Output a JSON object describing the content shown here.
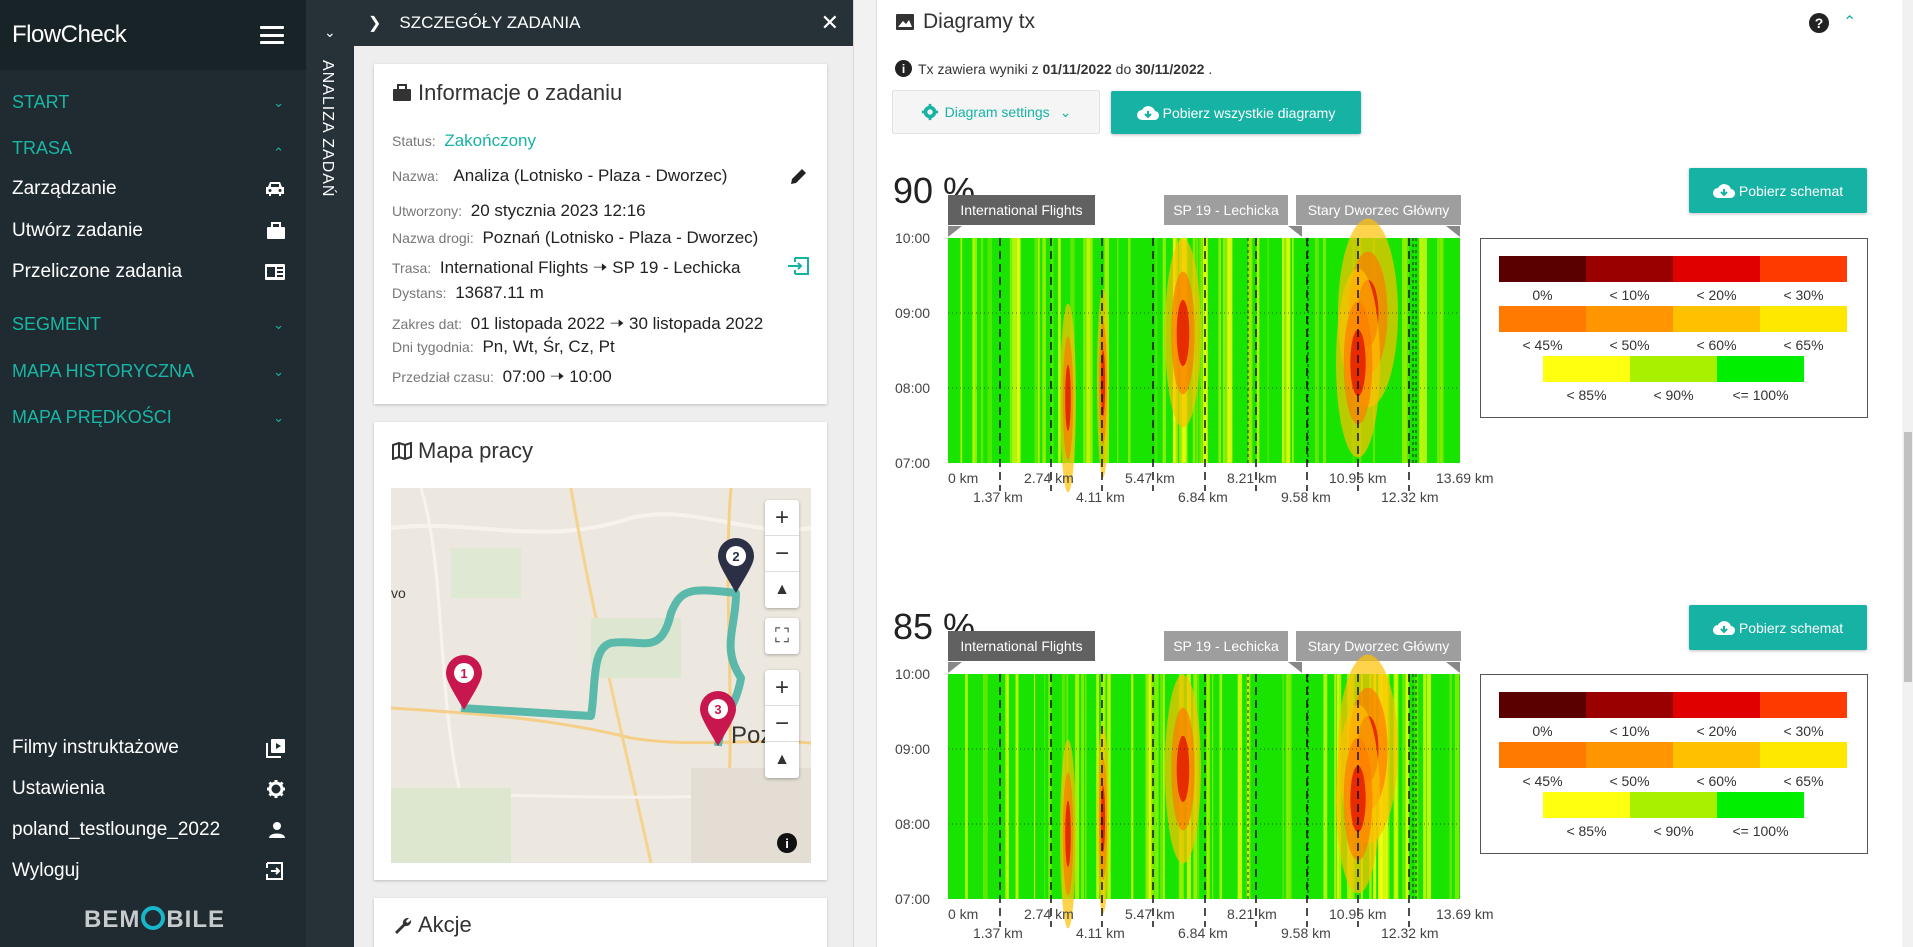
{
  "app": {
    "title": "FlowCheck",
    "logo": "BEMOBILE"
  },
  "sidebar": {
    "sections": [
      {
        "label": "START",
        "expanded": false
      },
      {
        "label": "TRASA",
        "expanded": true
      },
      {
        "label": "SEGMENT",
        "expanded": false
      },
      {
        "label": "MAPA HISTORYCZNA",
        "expanded": false
      },
      {
        "label": "MAPA PRĘDKOŚCI",
        "expanded": false
      }
    ],
    "trasa_items": [
      {
        "label": "Zarządzanie",
        "icon": "car-icon"
      },
      {
        "label": "Utwórz zadanie",
        "icon": "briefcase-icon"
      },
      {
        "label": "Przeliczone zadania",
        "icon": "news-icon"
      }
    ],
    "bottom_items": [
      {
        "label": "Filmy instruktażowe",
        "icon": "video-library-icon"
      },
      {
        "label": "Ustawienia",
        "icon": "gear-icon"
      },
      {
        "label": "poland_testlounge_2022",
        "icon": "user-icon"
      },
      {
        "label": "Wyloguj",
        "icon": "logout-icon"
      }
    ]
  },
  "strip": {
    "label": "ANALIZA ZADAŃ"
  },
  "detail": {
    "header": "SZCZEGÓŁY ZADANIA",
    "info": {
      "title": "Informacje o zadaniu",
      "status_label": "Status:",
      "status_value": "Zakończony",
      "name_label": "Nazwa:",
      "name_value": "Analiza (Lotnisko - Plaza - Dworzec)",
      "created_label": "Utworzony:",
      "created_value": "20 stycznia 2023 12:16",
      "road_label": "Nazwa drogi:",
      "road_value": "Poznań (Lotnisko - Plaza - Dworzec)",
      "route_label": "Trasa:",
      "route_from": "International Flights",
      "route_to": "SP 19 - Lechicka",
      "distance_label": "Dystans:",
      "distance_value": "13687.11 m",
      "dates_label": "Zakres dat:",
      "dates_from": "01 listopada 2022",
      "dates_to": "30 listopada 2022",
      "days_label": "Dni tygodnia:",
      "days_value": "Pn, Wt, Śr, Cz, Pt",
      "time_label": "Przedział czasu:",
      "time_from": "07:00",
      "time_to": "10:00"
    },
    "map": {
      "title": "Mapa pracy",
      "markers": [
        "1",
        "2",
        "3"
      ],
      "place_labels": [
        "vo",
        "Pozna"
      ]
    },
    "actions": {
      "title": "Akcje"
    }
  },
  "main": {
    "title": "Diagramy tx",
    "note_prefix": "Tx zawiera wyniki z",
    "note_from": "01/11/2022",
    "note_mid": "do",
    "note_to": "30/11/2022",
    "note_suffix": ".",
    "settings_button": "Diagram settings",
    "download_all_button": "Pobierz wszystkie diagramy",
    "diagrams": [
      {
        "percent": "90 %",
        "download": "Pobierz schemat"
      },
      {
        "percent": "85 %",
        "download": "Pobierz schemat"
      }
    ],
    "segments": [
      "International Flights",
      "SP 19 - Lechicka",
      "Stary Dworzec Główny"
    ],
    "y_ticks": [
      "10:00",
      "09:00",
      "08:00",
      "07:00"
    ],
    "x_ticks_top": [
      "0 km",
      "2.74 km",
      "5.47 km",
      "8.21 km",
      "10.95 km",
      "13.69 km"
    ],
    "x_ticks_bottom": [
      "1.37 km",
      "4.11 km",
      "6.84 km",
      "9.58 km",
      "12.32 km"
    ],
    "legend": {
      "rows": [
        [
          {
            "label": "0%",
            "color": "#5a0000"
          },
          {
            "label": "< 10%",
            "color": "#9a0000"
          },
          {
            "label": "< 20%",
            "color": "#e00000"
          },
          {
            "label": "< 30%",
            "color": "#ff3b00"
          }
        ],
        [
          {
            "label": "< 45%",
            "color": "#ff7a00"
          },
          {
            "label": "< 50%",
            "color": "#ff9500"
          },
          {
            "label": "< 60%",
            "color": "#ffc000"
          },
          {
            "label": "< 65%",
            "color": "#ffe800"
          }
        ],
        [
          {
            "label": "< 85%",
            "color": "#ffff10"
          },
          {
            "label": "< 90%",
            "color": "#a8f000"
          },
          {
            "label": "<= 100%",
            "color": "#00ee00"
          }
        ]
      ]
    }
  },
  "colors": {
    "accent": "#16b3a5",
    "sidebar": "#1f2b30",
    "header": "#263238"
  }
}
